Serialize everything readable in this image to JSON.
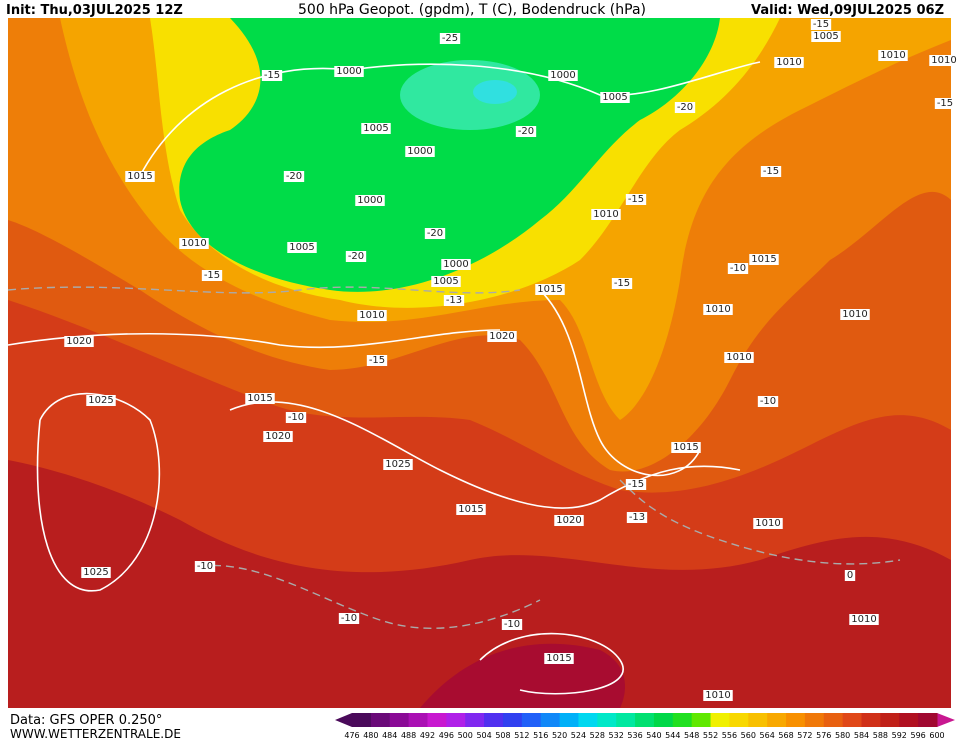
{
  "header": {
    "init": "Init: Thu,03JUL2025 12Z",
    "title": "500 hPa Geopot. (gpdm), T (C), Bodendruck (hPa)",
    "valid": "Valid: Wed,09JUL2025 06Z"
  },
  "footer": {
    "source": "Data: GFS OPER 0.250°",
    "site": "WWW.WETTERZENTRALE.DE"
  },
  "colorbar": {
    "levels": [
      476,
      480,
      484,
      488,
      492,
      496,
      500,
      504,
      508,
      512,
      516,
      520,
      524,
      528,
      532,
      536,
      540,
      544,
      548,
      552,
      556,
      560,
      564,
      568,
      572,
      576,
      580,
      584,
      588,
      592,
      596,
      600
    ],
    "colors": [
      "#4a0a5a",
      "#6a0a78",
      "#8a0a96",
      "#aa10b4",
      "#c818d0",
      "#b020e8",
      "#8028f0",
      "#5030f0",
      "#3040f0",
      "#2060f8",
      "#1088f8",
      "#00b0f8",
      "#00d8f0",
      "#00e8c8",
      "#00e8a0",
      "#00e070",
      "#00d848",
      "#20e020",
      "#60e800",
      "#f0f000",
      "#f8d800",
      "#f8c000",
      "#f8a800",
      "#f89000",
      "#f07808",
      "#e86010",
      "#e04818",
      "#d03018",
      "#c02018",
      "#b01020",
      "#a00830"
    ]
  },
  "map": {
    "labels": [
      "1005",
      "1010",
      "1010",
      "1010",
      "1000",
      "1000",
      "1005",
      "1005",
      "1000",
      "1015",
      "1000",
      "1010",
      "1005",
      "1000",
      "1005",
      "1010",
      "1015",
      "1015",
      "1010",
      "1010",
      "1010",
      "1020",
      "1020",
      "1010",
      "1025",
      "1015",
      "1020",
      "1015",
      "1025",
      "1015",
      "1020",
      "1010",
      "1025",
      "1010",
      "1015",
      "1010",
      "-25",
      "-15",
      "-15",
      "-20",
      "-20",
      "-20",
      "-15",
      "-15",
      "-20",
      "-20",
      "-15",
      "-10",
      "-15",
      "-13",
      "-15",
      "-10",
      "-10",
      "-15",
      "-13",
      "-10",
      "-10",
      "-10",
      "0",
      "-15"
    ]
  }
}
